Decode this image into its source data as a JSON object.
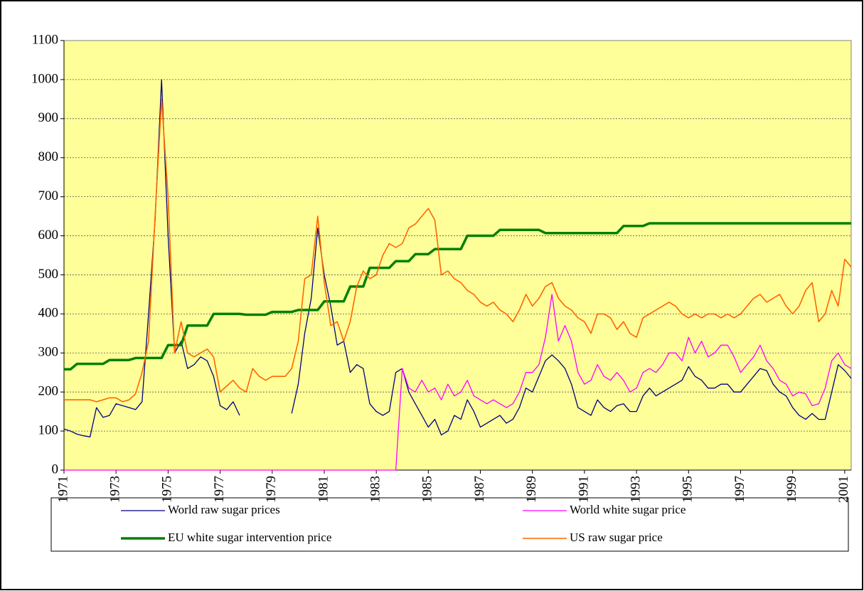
{
  "chart_data": {
    "type": "line",
    "x": [
      1971,
      1971.25,
      1971.5,
      1971.75,
      1972,
      1972.25,
      1972.5,
      1972.75,
      1973,
      1973.25,
      1973.5,
      1973.75,
      1974,
      1974.25,
      1974.5,
      1974.75,
      1975,
      1975.25,
      1975.5,
      1975.75,
      1976,
      1976.25,
      1976.5,
      1976.75,
      1977,
      1977.25,
      1977.5,
      1977.75,
      1978,
      1978.25,
      1978.5,
      1978.75,
      1979,
      1979.25,
      1979.5,
      1979.75,
      1980,
      1980.25,
      1980.5,
      1980.75,
      1981,
      1981.25,
      1981.5,
      1981.75,
      1982,
      1982.25,
      1982.5,
      1982.75,
      1983,
      1983.25,
      1983.5,
      1983.75,
      1984,
      1984.25,
      1984.5,
      1984.75,
      1985,
      1985.25,
      1985.5,
      1985.75,
      1986,
      1986.25,
      1986.5,
      1986.75,
      1987,
      1987.25,
      1987.5,
      1987.75,
      1988,
      1988.25,
      1988.5,
      1988.75,
      1989,
      1989.25,
      1989.5,
      1989.75,
      1990,
      1990.25,
      1990.5,
      1990.75,
      1991,
      1991.25,
      1991.5,
      1991.75,
      1992,
      1992.25,
      1992.5,
      1992.75,
      1993,
      1993.25,
      1993.5,
      1993.75,
      1994,
      1994.25,
      1994.5,
      1994.75,
      1995,
      1995.25,
      1995.5,
      1995.75,
      1996,
      1996.25,
      1996.5,
      1996.75,
      1997,
      1997.25,
      1997.5,
      1997.75,
      1998,
      1998.25,
      1998.5,
      1998.75,
      1999,
      1999.25,
      1999.5,
      1999.75,
      2000,
      2000.25,
      2000.5,
      2000.75,
      2001,
      2001.25
    ],
    "series": [
      {
        "name": "World raw sugar prices",
        "color": "#000080",
        "width": 1.3,
        "values": [
          105,
          100,
          92,
          88,
          85,
          160,
          135,
          140,
          170,
          165,
          160,
          155,
          175,
          400,
          640,
          1000,
          600,
          300,
          330,
          260,
          270,
          290,
          280,
          240,
          165,
          155,
          175,
          140,
          null,
          null,
          null,
          null,
          null,
          null,
          null,
          145,
          220,
          350,
          440,
          620,
          500,
          420,
          320,
          330,
          250,
          270,
          260,
          170,
          150,
          140,
          150,
          250,
          260,
          200,
          170,
          140,
          110,
          130,
          90,
          100,
          140,
          130,
          180,
          150,
          110,
          120,
          130,
          140,
          120,
          130,
          160,
          210,
          200,
          240,
          280,
          295,
          280,
          260,
          220,
          160,
          150,
          140,
          180,
          160,
          150,
          165,
          170,
          150,
          150,
          190,
          210,
          190,
          200,
          210,
          220,
          230,
          265,
          240,
          230,
          210,
          210,
          220,
          220,
          200,
          200,
          220,
          240,
          260,
          255,
          220,
          200,
          190,
          160,
          140,
          130,
          145,
          130,
          130,
          200,
          270,
          255,
          235
        ]
      },
      {
        "name": "World white sugar price",
        "color": "#ff00ff",
        "width": 1.3,
        "values": [
          0,
          0,
          0,
          0,
          0,
          0,
          0,
          0,
          0,
          0,
          0,
          0,
          0,
          0,
          0,
          0,
          0,
          0,
          0,
          0,
          0,
          0,
          0,
          0,
          0,
          0,
          0,
          0,
          0,
          0,
          0,
          0,
          0,
          0,
          0,
          0,
          0,
          0,
          0,
          0,
          0,
          0,
          0,
          0,
          0,
          0,
          0,
          0,
          0,
          0,
          0,
          0,
          260,
          210,
          200,
          230,
          200,
          210,
          180,
          220,
          190,
          200,
          230,
          190,
          180,
          170,
          180,
          170,
          160,
          170,
          200,
          250,
          250,
          270,
          340,
          450,
          330,
          370,
          330,
          250,
          220,
          230,
          270,
          240,
          230,
          250,
          230,
          200,
          210,
          250,
          260,
          250,
          270,
          300,
          300,
          280,
          340,
          300,
          330,
          290,
          300,
          320,
          320,
          290,
          250,
          270,
          290,
          320,
          280,
          260,
          230,
          220,
          190,
          200,
          195,
          165,
          170,
          210,
          280,
          300,
          270,
          260
        ]
      },
      {
        "name": "EU white sugar intervention price",
        "color": "#008000",
        "width": 3.5,
        "values": [
          258,
          258,
          272,
          272,
          272,
          272,
          272,
          282,
          282,
          282,
          282,
          287,
          287,
          287,
          287,
          287,
          320,
          320,
          320,
          370,
          370,
          370,
          370,
          400,
          400,
          400,
          400,
          400,
          398,
          398,
          398,
          398,
          405,
          405,
          405,
          405,
          410,
          410,
          410,
          410,
          432,
          432,
          432,
          432,
          470,
          470,
          470,
          518,
          518,
          518,
          518,
          535,
          535,
          535,
          553,
          553,
          553,
          566,
          566,
          566,
          566,
          566,
          600,
          600,
          600,
          600,
          600,
          615,
          615,
          615,
          615,
          615,
          615,
          615,
          607,
          607,
          607,
          607,
          607,
          607,
          607,
          607,
          607,
          607,
          607,
          607,
          625,
          625,
          625,
          625,
          632,
          632,
          632,
          632,
          632,
          632,
          632,
          632,
          632,
          632,
          632,
          632,
          632,
          632,
          632,
          632,
          632,
          632,
          632,
          632,
          632,
          632,
          632,
          632,
          632,
          632,
          632,
          632,
          632,
          632,
          632,
          632
        ]
      },
      {
        "name": "US raw sugar price",
        "color": "#ff6600",
        "width": 1.6,
        "values": [
          180,
          180,
          180,
          180,
          180,
          175,
          180,
          185,
          185,
          175,
          180,
          195,
          250,
          330,
          650,
          950,
          700,
          300,
          380,
          300,
          290,
          300,
          310,
          290,
          200,
          215,
          230,
          210,
          200,
          260,
          240,
          230,
          240,
          240,
          240,
          260,
          330,
          490,
          500,
          650,
          480,
          370,
          380,
          330,
          380,
          470,
          510,
          490,
          500,
          550,
          580,
          570,
          580,
          620,
          630,
          650,
          670,
          640,
          500,
          510,
          490,
          480,
          460,
          450,
          430,
          420,
          430,
          410,
          400,
          380,
          410,
          450,
          420,
          440,
          470,
          480,
          440,
          420,
          410,
          390,
          380,
          350,
          400,
          400,
          390,
          360,
          380,
          350,
          340,
          390,
          400,
          410,
          420,
          430,
          420,
          400,
          390,
          400,
          390,
          400,
          400,
          390,
          400,
          390,
          400,
          420,
          440,
          450,
          430,
          440,
          450,
          420,
          400,
          420,
          460,
          480,
          380,
          400,
          460,
          420,
          540,
          520
        ]
      }
    ],
    "xlim": [
      1971,
      2001.25
    ],
    "xticks": [
      1971,
      1973,
      1975,
      1977,
      1979,
      1981,
      1983,
      1985,
      1987,
      1989,
      1991,
      1993,
      1995,
      1997,
      1999,
      2001
    ],
    "ylim": [
      0,
      1100
    ],
    "yticks": [
      0,
      100,
      200,
      300,
      400,
      500,
      600,
      700,
      800,
      900,
      1000,
      1100
    ],
    "grid": true,
    "legend": "bottom",
    "background": "#ffff99"
  }
}
